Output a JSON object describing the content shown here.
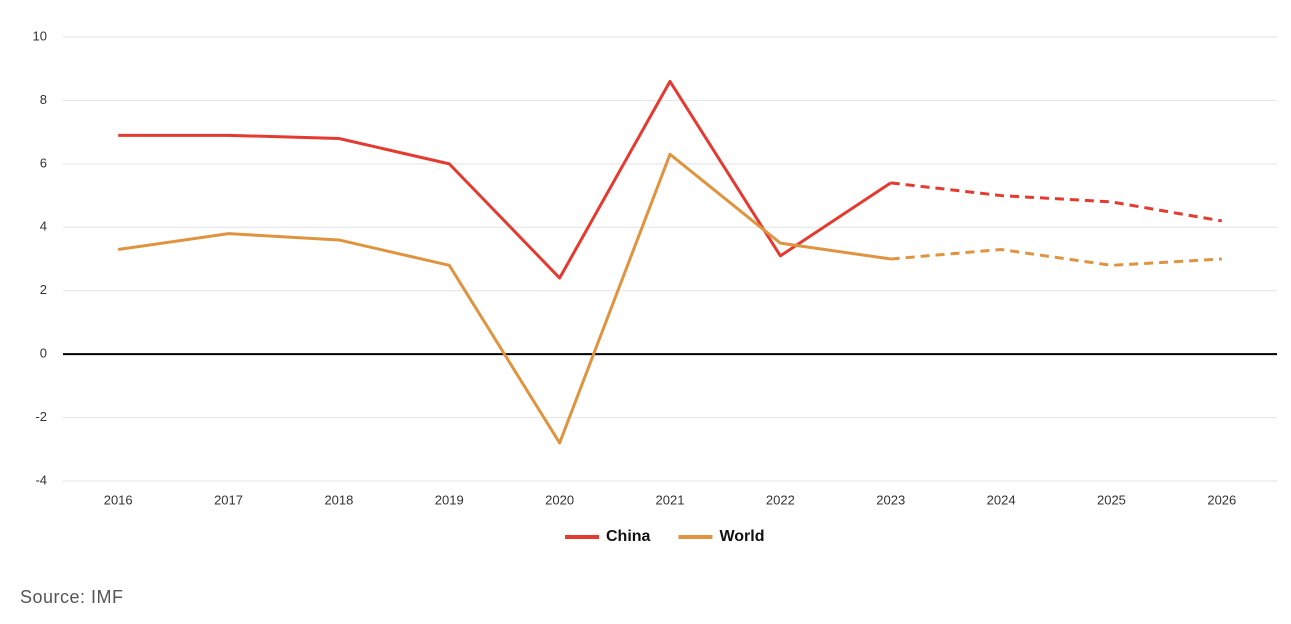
{
  "chart_data": {
    "type": "line",
    "categories": [
      "2016",
      "2017",
      "2018",
      "2019",
      "2020",
      "2021",
      "2022",
      "2023",
      "2024",
      "2025",
      "2026"
    ],
    "series": [
      {
        "name": "China",
        "color": "#e53a2f",
        "values": [
          6.9,
          6.9,
          6.8,
          6.0,
          2.4,
          8.6,
          3.1,
          5.4,
          5.0,
          4.8,
          4.2
        ]
      },
      {
        "name": "World",
        "color": "#e0943f",
        "values": [
          3.3,
          3.8,
          3.6,
          2.8,
          -2.8,
          6.3,
          3.5,
          3.0,
          3.3,
          2.8,
          3.0
        ]
      }
    ],
    "forecast_start": "2023",
    "ylim": [
      -4,
      10
    ],
    "yticks": [
      -4,
      -2,
      0,
      2,
      4,
      6,
      8,
      10
    ],
    "grid": true,
    "zero_line": true,
    "legend": "bottom",
    "source": "Source: IMF"
  }
}
